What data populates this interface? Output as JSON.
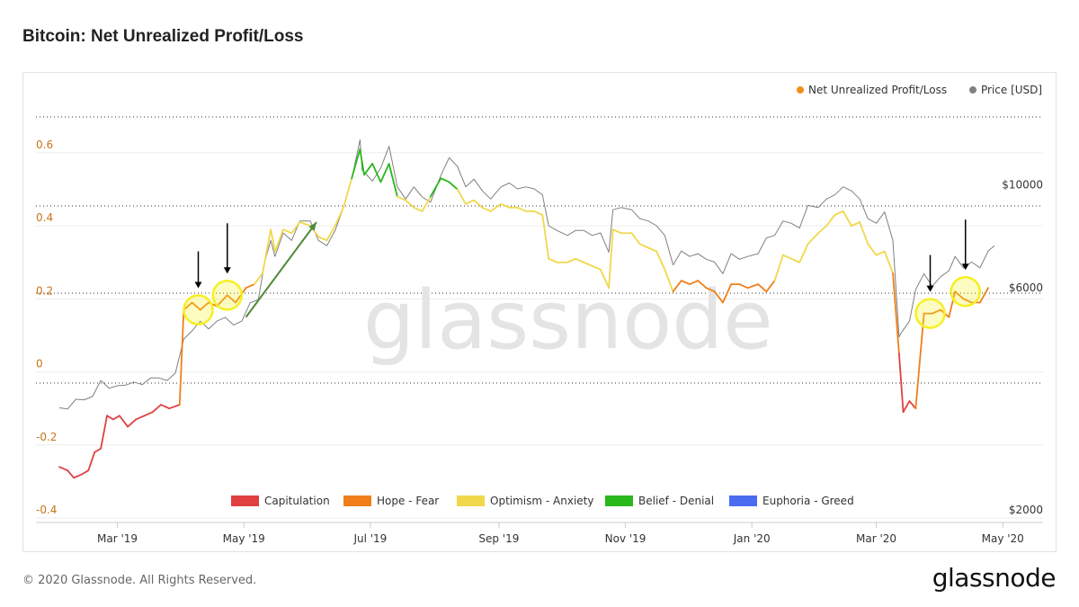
{
  "title": "Bitcoin: Net Unrealized Profit/Loss",
  "footer": "© 2020 Glassnode. All Rights Reserved.",
  "brand": "glassnode",
  "watermark": "glassnode",
  "colors": {
    "capitulation": "#e04040",
    "hope_fear": "#f07f1a",
    "optimism_anxiety": "#f0d84a",
    "belief_denial": "#28b81c",
    "euphoria_greed": "#4a6cf0",
    "price": "#808080",
    "nupl_legend": "#f0901a",
    "left_axis_text": "#c8741a",
    "highlight": "#f5f020",
    "arrow": "#4e8a3a"
  },
  "chart_data": {
    "type": "line",
    "x_ticks": [
      "Mar '19",
      "May '19",
      "Jul '19",
      "Sep '19",
      "Nov '19",
      "Jan '20",
      "Mar '20",
      "May '20"
    ],
    "x_tick_dates": [
      "2019-03-01",
      "2019-05-01",
      "2019-07-01",
      "2019-09-01",
      "2019-11-01",
      "2020-01-01",
      "2020-03-01",
      "2020-05-01"
    ],
    "x_range": [
      "2019-02-01",
      "2020-04-27"
    ],
    "left_axis": {
      "ticks": [
        "0.6",
        "0.4",
        "0.2",
        "0",
        "-0.2",
        "-0.4"
      ],
      "tick_values": [
        0.6,
        0.4,
        0.2,
        0,
        -0.2,
        -0.4
      ],
      "range": [
        -0.4,
        0.75
      ]
    },
    "right_axis": {
      "scale": "log",
      "ticks": [
        "$10000",
        "$6000",
        "$2000"
      ],
      "tick_values": [
        10000,
        6000,
        2000
      ],
      "range": [
        2000,
        14500
      ]
    },
    "grid": true,
    "legend_top": [
      {
        "label": "Net Unrealized Profit/Loss",
        "color": "#f0901a"
      },
      {
        "label": "Price [USD]",
        "color": "#808080"
      }
    ],
    "legend_bottom": [
      {
        "label": "Capitulation",
        "color": "#e04040"
      },
      {
        "label": "Hope - Fear",
        "color": "#f07f1a"
      },
      {
        "label": "Optimism - Anxiety",
        "color": "#f0d84a"
      },
      {
        "label": "Belief - Denial",
        "color": "#28b81c"
      },
      {
        "label": "Euphoria - Greed",
        "color": "#4a6cf0"
      }
    ],
    "series": [
      {
        "name": "Net Unrealized Profit/Loss",
        "points": [
          [
            "2019-02-01",
            -0.26
          ],
          [
            "2019-02-05",
            -0.27
          ],
          [
            "2019-02-08",
            -0.29
          ],
          [
            "2019-02-12",
            -0.28
          ],
          [
            "2019-02-15",
            -0.27
          ],
          [
            "2019-02-18",
            -0.22
          ],
          [
            "2019-02-21",
            -0.21
          ],
          [
            "2019-02-24",
            -0.12
          ],
          [
            "2019-02-27",
            -0.13
          ],
          [
            "2019-03-02",
            -0.12
          ],
          [
            "2019-03-06",
            -0.15
          ],
          [
            "2019-03-10",
            -0.13
          ],
          [
            "2019-03-14",
            -0.12
          ],
          [
            "2019-03-18",
            -0.11
          ],
          [
            "2019-03-22",
            -0.09
          ],
          [
            "2019-03-26",
            -0.1
          ],
          [
            "2019-03-31",
            -0.09
          ],
          [
            "2019-04-02",
            0.17
          ],
          [
            "2019-04-06",
            0.19
          ],
          [
            "2019-04-10",
            0.17
          ],
          [
            "2019-04-14",
            0.19
          ],
          [
            "2019-04-18",
            0.18
          ],
          [
            "2019-04-23",
            0.21
          ],
          [
            "2019-04-27",
            0.19
          ],
          [
            "2019-05-02",
            0.23
          ],
          [
            "2019-05-06",
            0.24
          ],
          [
            "2019-05-10",
            0.27
          ],
          [
            "2019-05-14",
            0.39
          ],
          [
            "2019-05-16",
            0.33
          ],
          [
            "2019-05-20",
            0.39
          ],
          [
            "2019-05-24",
            0.38
          ],
          [
            "2019-05-28",
            0.41
          ],
          [
            "2019-06-02",
            0.4
          ],
          [
            "2019-06-06",
            0.37
          ],
          [
            "2019-06-10",
            0.36
          ],
          [
            "2019-06-14",
            0.4
          ],
          [
            "2019-06-18",
            0.45
          ],
          [
            "2019-06-22",
            0.53
          ],
          [
            "2019-06-26",
            0.61
          ],
          [
            "2019-06-28",
            0.54
          ],
          [
            "2019-07-02",
            0.57
          ],
          [
            "2019-07-06",
            0.52
          ],
          [
            "2019-07-10",
            0.57
          ],
          [
            "2019-07-14",
            0.48
          ],
          [
            "2019-07-18",
            0.47
          ],
          [
            "2019-07-22",
            0.45
          ],
          [
            "2019-07-26",
            0.44
          ],
          [
            "2019-07-30",
            0.48
          ],
          [
            "2019-08-04",
            0.53
          ],
          [
            "2019-08-08",
            0.52
          ],
          [
            "2019-08-12",
            0.5
          ],
          [
            "2019-08-16",
            0.46
          ],
          [
            "2019-08-20",
            0.47
          ],
          [
            "2019-08-24",
            0.45
          ],
          [
            "2019-08-28",
            0.44
          ],
          [
            "2019-09-02",
            0.46
          ],
          [
            "2019-09-06",
            0.45
          ],
          [
            "2019-09-10",
            0.45
          ],
          [
            "2019-09-14",
            0.44
          ],
          [
            "2019-09-18",
            0.44
          ],
          [
            "2019-09-22",
            0.43
          ],
          [
            "2019-09-25",
            0.31
          ],
          [
            "2019-09-29",
            0.3
          ],
          [
            "2019-10-04",
            0.3
          ],
          [
            "2019-10-08",
            0.31
          ],
          [
            "2019-10-12",
            0.3
          ],
          [
            "2019-10-16",
            0.29
          ],
          [
            "2019-10-20",
            0.28
          ],
          [
            "2019-10-24",
            0.23
          ],
          [
            "2019-10-26",
            0.39
          ],
          [
            "2019-10-30",
            0.38
          ],
          [
            "2019-11-04",
            0.38
          ],
          [
            "2019-11-08",
            0.35
          ],
          [
            "2019-11-12",
            0.34
          ],
          [
            "2019-11-16",
            0.33
          ],
          [
            "2019-11-20",
            0.28
          ],
          [
            "2019-11-24",
            0.22
          ],
          [
            "2019-11-28",
            0.25
          ],
          [
            "2019-12-02",
            0.24
          ],
          [
            "2019-12-06",
            0.25
          ],
          [
            "2019-12-10",
            0.23
          ],
          [
            "2019-12-14",
            0.22
          ],
          [
            "2019-12-18",
            0.19
          ],
          [
            "2019-12-22",
            0.24
          ],
          [
            "2019-12-26",
            0.24
          ],
          [
            "2019-12-30",
            0.23
          ],
          [
            "2020-01-04",
            0.24
          ],
          [
            "2020-01-08",
            0.22
          ],
          [
            "2020-01-12",
            0.25
          ],
          [
            "2020-01-16",
            0.32
          ],
          [
            "2020-01-20",
            0.31
          ],
          [
            "2020-01-24",
            0.3
          ],
          [
            "2020-01-28",
            0.35
          ],
          [
            "2020-02-02",
            0.38
          ],
          [
            "2020-02-06",
            0.4
          ],
          [
            "2020-02-10",
            0.43
          ],
          [
            "2020-02-14",
            0.44
          ],
          [
            "2020-02-18",
            0.4
          ],
          [
            "2020-02-22",
            0.41
          ],
          [
            "2020-02-26",
            0.35
          ],
          [
            "2020-03-01",
            0.32
          ],
          [
            "2020-03-05",
            0.33
          ],
          [
            "2020-03-09",
            0.27
          ],
          [
            "2020-03-12",
            0.05
          ],
          [
            "2020-03-14",
            -0.11
          ],
          [
            "2020-03-17",
            -0.08
          ],
          [
            "2020-03-20",
            -0.1
          ],
          [
            "2020-03-24",
            0.16
          ],
          [
            "2020-03-28",
            0.16
          ],
          [
            "2020-04-01",
            0.17
          ],
          [
            "2020-04-05",
            0.15
          ],
          [
            "2020-04-08",
            0.22
          ],
          [
            "2020-04-12",
            0.2
          ],
          [
            "2020-04-16",
            0.19
          ],
          [
            "2020-04-20",
            0.19
          ],
          [
            "2020-04-24",
            0.23
          ]
        ]
      },
      {
        "name": "Price [USD]",
        "points": [
          [
            "2019-02-01",
            3450
          ],
          [
            "2019-02-05",
            3430
          ],
          [
            "2019-02-09",
            3600
          ],
          [
            "2019-02-13",
            3590
          ],
          [
            "2019-02-17",
            3650
          ],
          [
            "2019-02-21",
            3950
          ],
          [
            "2019-02-25",
            3800
          ],
          [
            "2019-03-01",
            3850
          ],
          [
            "2019-03-05",
            3860
          ],
          [
            "2019-03-09",
            3920
          ],
          [
            "2019-03-13",
            3870
          ],
          [
            "2019-03-17",
            4000
          ],
          [
            "2019-03-21",
            4000
          ],
          [
            "2019-03-25",
            3950
          ],
          [
            "2019-03-29",
            4100
          ],
          [
            "2019-04-02",
            4850
          ],
          [
            "2019-04-06",
            5050
          ],
          [
            "2019-04-10",
            5300
          ],
          [
            "2019-04-14",
            5100
          ],
          [
            "2019-04-18",
            5300
          ],
          [
            "2019-04-22",
            5400
          ],
          [
            "2019-04-26",
            5200
          ],
          [
            "2019-04-30",
            5300
          ],
          [
            "2019-05-04",
            5800
          ],
          [
            "2019-05-08",
            5900
          ],
          [
            "2019-05-11",
            7100
          ],
          [
            "2019-05-14",
            7900
          ],
          [
            "2019-05-16",
            7300
          ],
          [
            "2019-05-20",
            8200
          ],
          [
            "2019-05-24",
            7900
          ],
          [
            "2019-05-28",
            8700
          ],
          [
            "2019-06-02",
            8700
          ],
          [
            "2019-06-06",
            7900
          ],
          [
            "2019-06-10",
            7700
          ],
          [
            "2019-06-14",
            8300
          ],
          [
            "2019-06-18",
            9300
          ],
          [
            "2019-06-22",
            10700
          ],
          [
            "2019-06-26",
            13000
          ],
          [
            "2019-06-27",
            11200
          ],
          [
            "2019-07-02",
            10600
          ],
          [
            "2019-07-06",
            11300
          ],
          [
            "2019-07-10",
            12600
          ],
          [
            "2019-07-14",
            10300
          ],
          [
            "2019-07-18",
            9700
          ],
          [
            "2019-07-22",
            10300
          ],
          [
            "2019-07-26",
            9800
          ],
          [
            "2019-07-30",
            9550
          ],
          [
            "2019-08-04",
            10900
          ],
          [
            "2019-08-08",
            11900
          ],
          [
            "2019-08-12",
            11400
          ],
          [
            "2019-08-16",
            10300
          ],
          [
            "2019-08-20",
            10700
          ],
          [
            "2019-08-24",
            10100
          ],
          [
            "2019-08-28",
            9700
          ],
          [
            "2019-09-02",
            10300
          ],
          [
            "2019-09-06",
            10500
          ],
          [
            "2019-09-10",
            10200
          ],
          [
            "2019-09-14",
            10300
          ],
          [
            "2019-09-18",
            10200
          ],
          [
            "2019-09-22",
            9900
          ],
          [
            "2019-09-25",
            8500
          ],
          [
            "2019-09-29",
            8300
          ],
          [
            "2019-10-04",
            8100
          ],
          [
            "2019-10-08",
            8300
          ],
          [
            "2019-10-12",
            8300
          ],
          [
            "2019-10-16",
            8100
          ],
          [
            "2019-10-20",
            8200
          ],
          [
            "2019-10-24",
            7450
          ],
          [
            "2019-10-26",
            9200
          ],
          [
            "2019-10-30",
            9300
          ],
          [
            "2019-11-04",
            9200
          ],
          [
            "2019-11-08",
            8800
          ],
          [
            "2019-11-12",
            8700
          ],
          [
            "2019-11-16",
            8500
          ],
          [
            "2019-11-20",
            8100
          ],
          [
            "2019-11-24",
            7000
          ],
          [
            "2019-11-28",
            7500
          ],
          [
            "2019-12-02",
            7300
          ],
          [
            "2019-12-06",
            7400
          ],
          [
            "2019-12-10",
            7200
          ],
          [
            "2019-12-14",
            7100
          ],
          [
            "2019-12-18",
            6700
          ],
          [
            "2019-12-22",
            7400
          ],
          [
            "2019-12-26",
            7200
          ],
          [
            "2019-12-30",
            7300
          ],
          [
            "2020-01-04",
            7400
          ],
          [
            "2020-01-08",
            8000
          ],
          [
            "2020-01-12",
            8100
          ],
          [
            "2020-01-16",
            8700
          ],
          [
            "2020-01-20",
            8600
          ],
          [
            "2020-01-24",
            8400
          ],
          [
            "2020-01-28",
            9400
          ],
          [
            "2020-02-02",
            9300
          ],
          [
            "2020-02-06",
            9700
          ],
          [
            "2020-02-10",
            9900
          ],
          [
            "2020-02-14",
            10300
          ],
          [
            "2020-02-18",
            10100
          ],
          [
            "2020-02-22",
            9700
          ],
          [
            "2020-02-26",
            8800
          ],
          [
            "2020-03-01",
            8600
          ],
          [
            "2020-03-05",
            9100
          ],
          [
            "2020-03-09",
            7900
          ],
          [
            "2020-03-12",
            4900
          ],
          [
            "2020-03-13",
            5000
          ],
          [
            "2020-03-17",
            5300
          ],
          [
            "2020-03-20",
            6200
          ],
          [
            "2020-03-24",
            6700
          ],
          [
            "2020-03-28",
            6300
          ],
          [
            "2020-04-01",
            6600
          ],
          [
            "2020-04-05",
            6800
          ],
          [
            "2020-04-08",
            7300
          ],
          [
            "2020-04-12",
            6900
          ],
          [
            "2020-04-16",
            7100
          ],
          [
            "2020-04-20",
            6900
          ],
          [
            "2020-04-24",
            7500
          ],
          [
            "2020-04-27",
            7700
          ]
        ]
      }
    ],
    "zone_bounds": [
      0,
      0.25,
      0.5,
      0.75
    ]
  }
}
